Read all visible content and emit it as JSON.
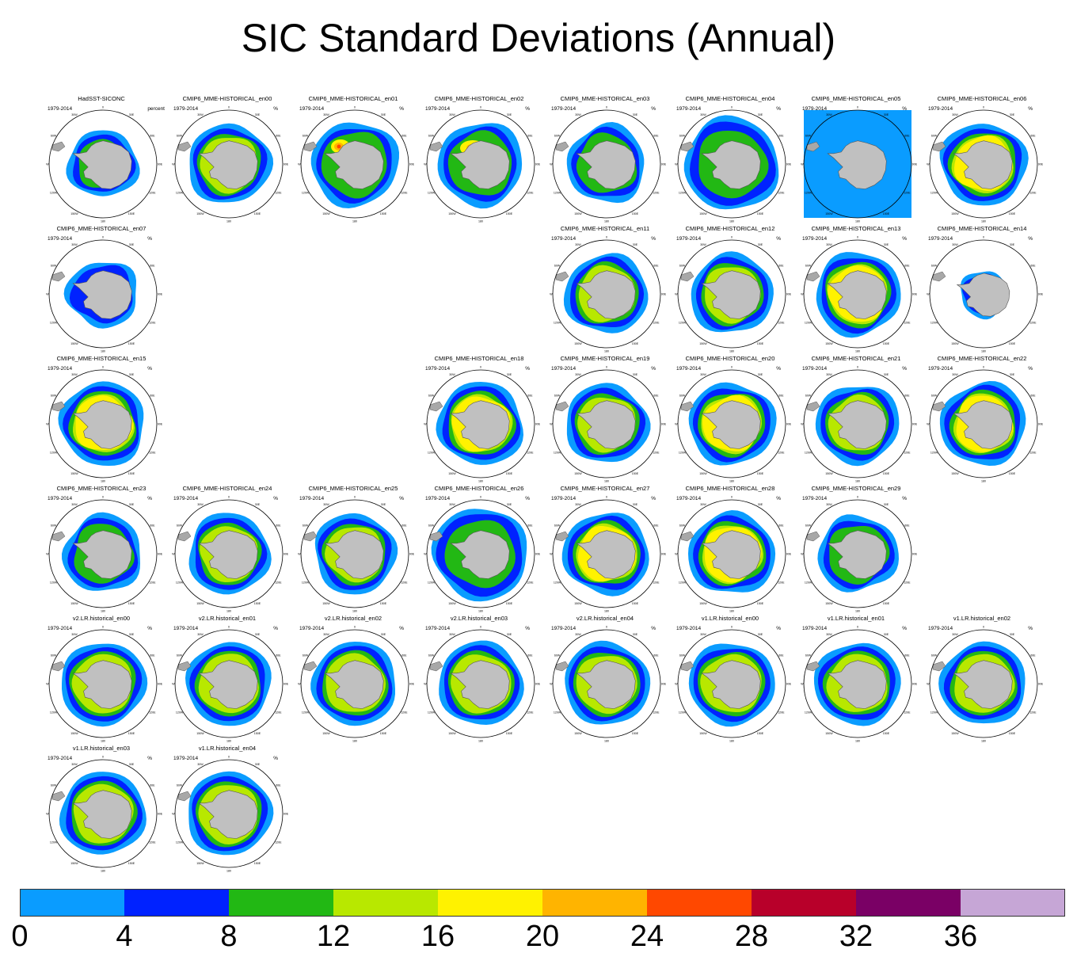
{
  "title": "SIC Standard Deviations (Annual)",
  "period": "1979-2014",
  "units_first": "percent",
  "units": "%",
  "colors": {
    "ocean_blank": "#ffffff",
    "land": "#c0c0c0",
    "south_america": "#a8a8a8"
  },
  "lon_labels": [
    "0",
    "30E",
    "60E",
    "90E",
    "120E",
    "150E",
    "180",
    "150W",
    "120W",
    "90W",
    "60W",
    "30W"
  ],
  "chart_data": {
    "type": "heatmap",
    "title": "SIC Standard Deviations (Annual)",
    "colorbar": {
      "levels": [
        0,
        4,
        8,
        12,
        16,
        20,
        24,
        28,
        32,
        36
      ],
      "labels": [
        "0",
        "4",
        "8",
        "12",
        "16",
        "20",
        "24",
        "28",
        "32",
        "36"
      ],
      "colors": [
        "#0a9cff",
        "#0022ff",
        "#22b814",
        "#b8e800",
        "#fff200",
        "#ffb400",
        "#ff4800",
        "#b8002a",
        "#7a0065",
        "#c6a6d6"
      ]
    },
    "panels": [
      {
        "title": "HadSST-SICONC",
        "row": 0,
        "col": 0,
        "style": "obs"
      },
      {
        "title": "CMIP6_MME-HISTORICAL_en00",
        "row": 0,
        "col": 1,
        "style": "green"
      },
      {
        "title": "CMIP6_MME-HISTORICAL_en01",
        "row": 0,
        "col": 2,
        "style": "hot"
      },
      {
        "title": "CMIP6_MME-HISTORICAL_en02",
        "row": 0,
        "col": 3,
        "style": "hot2"
      },
      {
        "title": "CMIP6_MME-HISTORICAL_en03",
        "row": 0,
        "col": 4,
        "style": "weak"
      },
      {
        "title": "CMIP6_MME-HISTORICAL_en04",
        "row": 0,
        "col": 5,
        "style": "big"
      },
      {
        "title": "CMIP6_MME-HISTORICAL_en05",
        "row": 0,
        "col": 6,
        "style": "square"
      },
      {
        "title": "CMIP6_MME-HISTORICAL_en06",
        "row": 0,
        "col": 7,
        "style": "yellow"
      },
      {
        "title": "CMIP6_MME-HISTORICAL_en07",
        "row": 1,
        "col": 0,
        "style": "small"
      },
      {
        "title": "CMIP6_MME-HISTORICAL_en11",
        "row": 1,
        "col": 4,
        "style": "green"
      },
      {
        "title": "CMIP6_MME-HISTORICAL_en12",
        "row": 1,
        "col": 5,
        "style": "green"
      },
      {
        "title": "CMIP6_MME-HISTORICAL_en13",
        "row": 1,
        "col": 6,
        "style": "yellow"
      },
      {
        "title": "CMIP6_MME-HISTORICAL_en14",
        "row": 1,
        "col": 7,
        "style": "tiny"
      },
      {
        "title": "CMIP6_MME-HISTORICAL_en15",
        "row": 2,
        "col": 0,
        "style": "yellow"
      },
      {
        "title": "CMIP6_MME-HISTORICAL_en18",
        "row": 2,
        "col": 3,
        "style": "yellow"
      },
      {
        "title": "CMIP6_MME-HISTORICAL_en19",
        "row": 2,
        "col": 4,
        "style": "green"
      },
      {
        "title": "CMIP6_MME-HISTORICAL_en20",
        "row": 2,
        "col": 5,
        "style": "yellow"
      },
      {
        "title": "CMIP6_MME-HISTORICAL_en21",
        "row": 2,
        "col": 6,
        "style": "green"
      },
      {
        "title": "CMIP6_MME-HISTORICAL_en22",
        "row": 2,
        "col": 7,
        "style": "yellow"
      },
      {
        "title": "CMIP6_MME-HISTORICAL_en23",
        "row": 3,
        "col": 0,
        "style": "weak"
      },
      {
        "title": "CMIP6_MME-HISTORICAL_en24",
        "row": 3,
        "col": 1,
        "style": "green"
      },
      {
        "title": "CMIP6_MME-HISTORICAL_en25",
        "row": 3,
        "col": 2,
        "style": "green"
      },
      {
        "title": "CMIP6_MME-HISTORICAL_en26",
        "row": 3,
        "col": 3,
        "style": "big"
      },
      {
        "title": "CMIP6_MME-HISTORICAL_en27",
        "row": 3,
        "col": 4,
        "style": "yellow"
      },
      {
        "title": "CMIP6_MME-HISTORICAL_en28",
        "row": 3,
        "col": 5,
        "style": "yellow"
      },
      {
        "title": "CMIP6_MME-HISTORICAL_en29",
        "row": 3,
        "col": 6,
        "style": "weak"
      },
      {
        "title": "v2.LR.historical_en00",
        "row": 4,
        "col": 0,
        "style": "e3sm"
      },
      {
        "title": "v2.LR.historical_en01",
        "row": 4,
        "col": 1,
        "style": "e3sm"
      },
      {
        "title": "v2.LR.historical_en02",
        "row": 4,
        "col": 2,
        "style": "e3sm"
      },
      {
        "title": "v2.LR.historical_en03",
        "row": 4,
        "col": 3,
        "style": "e3sm"
      },
      {
        "title": "v2.LR.historical_en04",
        "row": 4,
        "col": 4,
        "style": "e3sm"
      },
      {
        "title": "v1.LR.historical_en00",
        "row": 4,
        "col": 5,
        "style": "e3sm"
      },
      {
        "title": "v1.LR.historical_en01",
        "row": 4,
        "col": 6,
        "style": "e3sm"
      },
      {
        "title": "v1.LR.historical_en02",
        "row": 4,
        "col": 7,
        "style": "e3sm"
      },
      {
        "title": "v1.LR.historical_en03",
        "row": 5,
        "col": 0,
        "style": "e3sm"
      },
      {
        "title": "v1.LR.historical_en04",
        "row": 5,
        "col": 1,
        "style": "e3sm"
      }
    ]
  }
}
